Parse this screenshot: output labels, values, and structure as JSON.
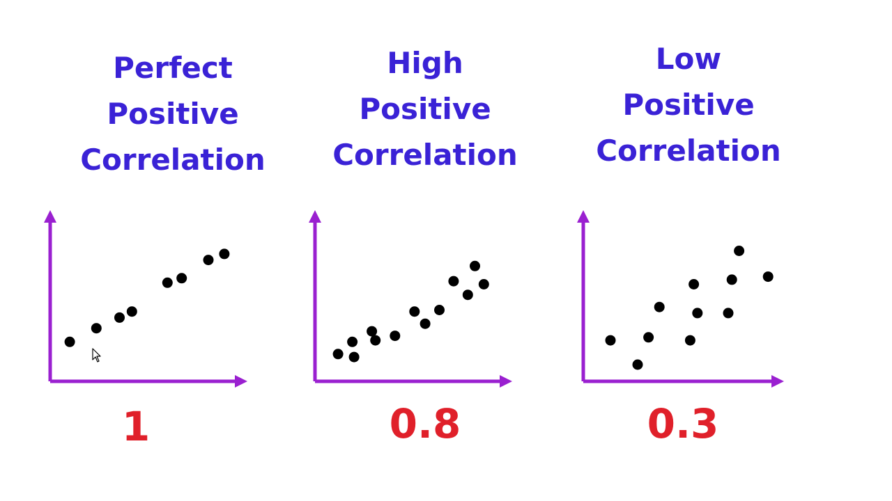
{
  "chart_data": [
    {
      "type": "scatter",
      "title": [
        "Perfect",
        "Positive",
        "Correlation"
      ],
      "coefficient": "1",
      "xlim": [
        0,
        10
      ],
      "ylim": [
        0,
        10
      ],
      "points": [
        [
          1.1,
          2.6
        ],
        [
          2.6,
          3.5
        ],
        [
          3.9,
          4.2
        ],
        [
          4.6,
          4.6
        ],
        [
          6.6,
          6.5
        ],
        [
          7.4,
          6.8
        ],
        [
          8.9,
          8.0
        ],
        [
          9.8,
          8.4
        ]
      ]
    },
    {
      "type": "scatter",
      "title": [
        "High",
        "Positive",
        "Correlation"
      ],
      "coefficient": "0.8",
      "xlim": [
        0,
        10
      ],
      "ylim": [
        0,
        10
      ],
      "points": [
        [
          1.3,
          1.8
        ],
        [
          2.1,
          2.6
        ],
        [
          2.2,
          1.6
        ],
        [
          3.2,
          3.3
        ],
        [
          3.4,
          2.7
        ],
        [
          4.5,
          3.0
        ],
        [
          5.6,
          4.6
        ],
        [
          6.2,
          3.8
        ],
        [
          7.0,
          4.7
        ],
        [
          7.8,
          6.6
        ],
        [
          8.6,
          5.7
        ],
        [
          9.0,
          7.6
        ],
        [
          9.5,
          6.4
        ]
      ]
    },
    {
      "type": "scatter",
      "title": [
        "Low",
        "Positive",
        "Correlation"
      ],
      "coefficient": "0.3",
      "xlim": [
        0,
        10
      ],
      "ylim": [
        0,
        10
      ],
      "points": [
        [
          1.5,
          2.7
        ],
        [
          3.0,
          1.1
        ],
        [
          3.6,
          2.9
        ],
        [
          4.2,
          4.9
        ],
        [
          5.9,
          2.7
        ],
        [
          6.1,
          6.4
        ],
        [
          6.3,
          4.5
        ],
        [
          8.0,
          4.5
        ],
        [
          8.2,
          6.7
        ],
        [
          8.6,
          8.6
        ],
        [
          10.2,
          6.9
        ]
      ]
    }
  ],
  "colors": {
    "axis": "#9a20d0",
    "dot": "#000000",
    "title": "#3a22d6",
    "coefficient": "#e0202a"
  },
  "cursor": "arrow-cursor-icon"
}
